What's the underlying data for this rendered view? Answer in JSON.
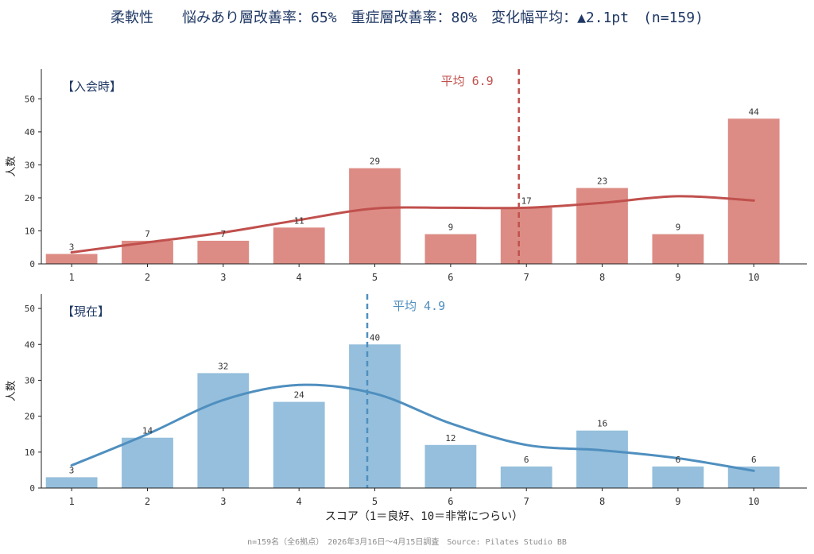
{
  "title": "柔軟性　　悩みあり層改善率：65%　重症層改善率：80%　変化幅平均：▲2.1pt　(n=159)",
  "footer": "n=159名（全6拠点）　2026年3月16日〜4月15日調査　Source: Pilates Studio BB",
  "colors": {
    "before_bar": "#dc8c85",
    "before_line": "#c0504d",
    "after_bar": "#95bfdc",
    "after_line": "#4f8fbf",
    "title": "#1f3864",
    "tick_text": "#333333"
  },
  "chart_data": [
    {
      "type": "bar",
      "panel_label": "【入会時】",
      "categories": [
        "1",
        "2",
        "3",
        "4",
        "5",
        "6",
        "7",
        "8",
        "9",
        "10"
      ],
      "values": [
        3,
        7,
        7,
        11,
        29,
        9,
        17,
        23,
        9,
        44
      ],
      "trend_curve": [
        3.5,
        6.5,
        9.5,
        13.3,
        16.8,
        17.0,
        17.0,
        18.5,
        20.5,
        19.2
      ],
      "mean": 6.9,
      "mean_label": "平均 6.9",
      "ylabel": "人数",
      "xlabel": "",
      "yticks": [
        0,
        10,
        20,
        30,
        40,
        50
      ],
      "ylim": [
        0,
        59
      ],
      "xlim": [
        0.6,
        10.7
      ],
      "grid": false
    },
    {
      "type": "bar",
      "panel_label": "【現在】",
      "categories": [
        "1",
        "2",
        "3",
        "4",
        "5",
        "6",
        "7",
        "8",
        "9",
        "10"
      ],
      "values": [
        3,
        14,
        32,
        24,
        40,
        12,
        6,
        16,
        6,
        6
      ],
      "trend_curve": [
        6.3,
        15.0,
        24.5,
        28.7,
        26.3,
        18.0,
        12.0,
        10.5,
        8.3,
        4.8
      ],
      "mean": 4.9,
      "mean_label": "平均 4.9",
      "ylabel": "人数",
      "xlabel": "スコア（1＝良好、10＝非常につらい）",
      "yticks": [
        0,
        10,
        20,
        30,
        40,
        50
      ],
      "ylim": [
        0,
        54
      ],
      "xlim": [
        0.6,
        10.7
      ],
      "grid": false
    }
  ]
}
